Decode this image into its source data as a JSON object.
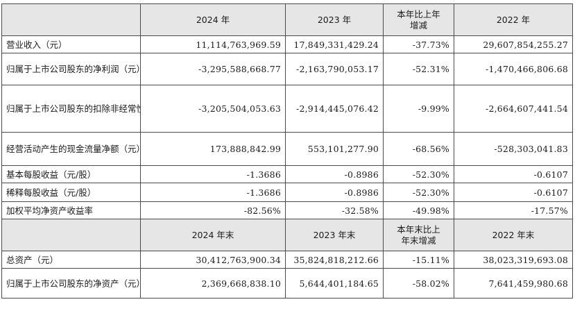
{
  "header1": {
    "c0": "",
    "c1": "2024 年",
    "c2": "2023 年",
    "c3": "本年比上年\n增减",
    "c4": "2022 年"
  },
  "rows1": [
    {
      "label": "营业收入（元）",
      "v2024": "11,114,763,969.59",
      "v2023": "17,849,331,429.24",
      "chg": "-37.73%",
      "v2022": "29,607,854,255.27"
    },
    {
      "label": "归属于上市公司股东的净利润（元）",
      "v2024": "-3,295,588,668.77",
      "v2023": "-2,163,790,053.17",
      "chg": "-52.31%",
      "v2022": "-1,470,466,806.68"
    },
    {
      "label": "归属于上市公司股东的扣除非经常性损益的净利润（元）",
      "v2024": "-3,205,504,053.63",
      "v2023": "-2,914,445,076.42",
      "chg": "-9.99%",
      "v2022": "-2,664,607,441.54"
    },
    {
      "label": "经营活动产生的现金流量净额（元）",
      "v2024": "173,888,842.99",
      "v2023": "553,101,277.90",
      "chg": "-68.56%",
      "v2022": "-528,303,041.83"
    },
    {
      "label": "基本每股收益（元/股）",
      "v2024": "-1.3686",
      "v2023": "-0.8986",
      "chg": "-52.30%",
      "v2022": "-0.6107"
    },
    {
      "label": "稀释每股收益（元/股）",
      "v2024": "-1.3686",
      "v2023": "-0.8986",
      "chg": "-52.30%",
      "v2022": "-0.6107"
    },
    {
      "label": "加权平均净资产收益率",
      "v2024": "-82.56%",
      "v2023": "-32.58%",
      "chg": "-49.98%",
      "v2022": "-17.57%"
    }
  ],
  "header2": {
    "c0": "",
    "c1": "2024 年末",
    "c2": "2023 年末",
    "c3": "本年末比上\n年末增减",
    "c4": "2022 年末"
  },
  "rows2": [
    {
      "label": "总资产（元）",
      "v2024": "30,412,763,900.34",
      "v2023": "35,824,818,212.66",
      "chg": "-15.11%",
      "v2022": "38,023,319,693.08"
    },
    {
      "label": "归属于上市公司股东的净资产（元）",
      "v2024": "2,369,668,838.10",
      "v2023": "5,644,401,184.65",
      "chg": "-58.02%",
      "v2022": "7,641,459,980.68"
    }
  ]
}
